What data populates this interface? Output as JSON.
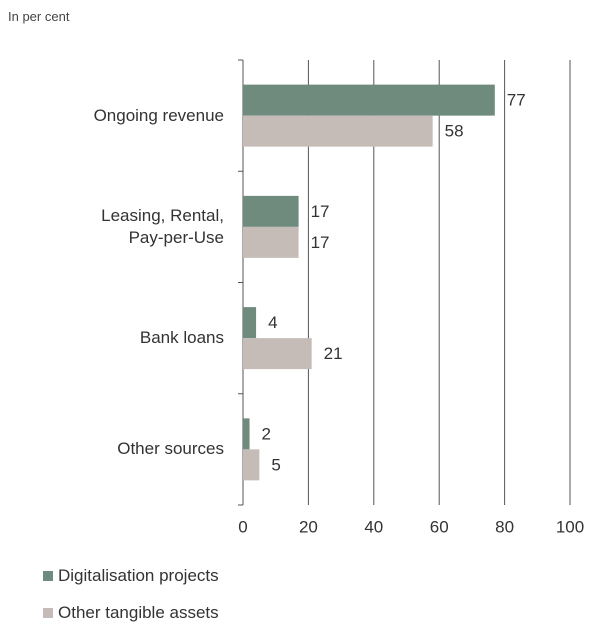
{
  "chart_data": {
    "type": "barh",
    "subtitle": "In per cent",
    "categories": [
      "Ongoing revenue",
      "Leasing, Rental,\nPay-per-Use",
      "Bank loans",
      "Other sources"
    ],
    "series": [
      {
        "name": "Digitalisation projects",
        "color": "#6e8b7d",
        "values": [
          77,
          17,
          4,
          2
        ]
      },
      {
        "name": "Other tangible assets",
        "color": "#c5bcb8",
        "values": [
          58,
          17,
          21,
          5
        ]
      }
    ],
    "xlim": [
      0,
      100
    ],
    "xticks": [
      0,
      20,
      40,
      60,
      80,
      100
    ],
    "grid": true
  }
}
